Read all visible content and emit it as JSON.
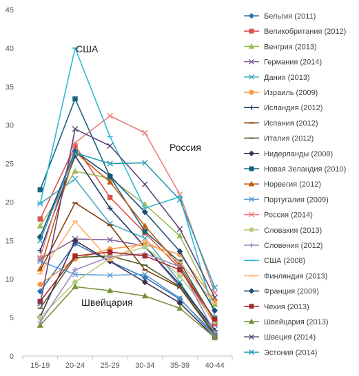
{
  "chart_data": {
    "type": "line",
    "categories": [
      "15-19",
      "20-24",
      "25-29",
      "30-34",
      "35-39",
      "40-44"
    ],
    "ylim": [
      0,
      45
    ],
    "yticks": [
      0,
      5,
      10,
      15,
      20,
      25,
      30,
      35,
      40,
      45
    ],
    "grid": "none",
    "legend_position": "right",
    "annotations": [
      "США",
      "Россия",
      "Швейцария"
    ],
    "series": [
      {
        "name": "Бельгия (2011)",
        "color": "#2e75b6",
        "marker": "diamond",
        "values": [
          8.4,
          14.6,
          12.3,
          10.2,
          7.4,
          2.8
        ]
      },
      {
        "name": "Великобритания (2012)",
        "color": "#d9534f",
        "marker": "square",
        "values": [
          17.8,
          27.3,
          20.6,
          16.0,
          11.4,
          4.2
        ]
      },
      {
        "name": "Венгрия (2013)",
        "color": "#9bbb59",
        "marker": "triangle",
        "values": [
          16.9,
          24.0,
          23.1,
          19.7,
          15.6,
          6.7
        ]
      },
      {
        "name": "Германия (2014)",
        "color": "#8064a2",
        "marker": "x",
        "values": [
          12.6,
          15.2,
          15.1,
          14.3,
          9.0,
          3.5
        ]
      },
      {
        "name": "Дания (2013)",
        "color": "#4bacc6",
        "marker": "x",
        "values": [
          19.8,
          23.0,
          17.2,
          15.3,
          9.6,
          2.9
        ]
      },
      {
        "name": "Израиль (2009)",
        "color": "#f79646",
        "marker": "circle",
        "values": [
          9.3,
          12.6,
          13.9,
          14.5,
          13.2,
          7.2
        ]
      },
      {
        "name": "Исландия (2012)",
        "color": "#1f3864",
        "marker": "plus",
        "values": [
          13.7,
          26.0,
          19.2,
          14.2,
          9.3,
          3.3
        ]
      },
      {
        "name": "Испания (2012)",
        "color": "#843c0c",
        "marker": "dash",
        "values": [
          11.1,
          19.9,
          17.0,
          11.2,
          8.9,
          2.7
        ]
      },
      {
        "name": "Италия (2012)",
        "color": "#4f6228",
        "marker": "dash",
        "values": [
          6.2,
          12.8,
          13.0,
          11.8,
          9.0,
          2.9
        ]
      },
      {
        "name": "Нидерланды (2008)",
        "color": "#403152",
        "marker": "diamond",
        "values": [
          5.1,
          15.0,
          12.3,
          9.6,
          6.9,
          2.4
        ]
      },
      {
        "name": "Новая Зеландия (2010)",
        "color": "#17667a",
        "marker": "square",
        "values": [
          21.6,
          33.4,
          23.3,
          16.2,
          12.2,
          4.5
        ]
      },
      {
        "name": "Норвегия (2012)",
        "color": "#c55a11",
        "marker": "triangle",
        "values": [
          11.3,
          26.5,
          22.6,
          16.9,
          11.7,
          4.6
        ]
      },
      {
        "name": "Португалия (2009)",
        "color": "#5b9bd5",
        "marker": "x",
        "values": [
          12.3,
          10.6,
          10.5,
          10.6,
          7.5,
          2.5
        ]
      },
      {
        "name": "Россия (2014)",
        "color": "#ed7d7d",
        "marker": "x",
        "values": [
          12.8,
          27.7,
          31.2,
          29.0,
          21.0,
          8.2
        ]
      },
      {
        "name": "Словакия (2013)",
        "color": "#b8cc84",
        "marker": "circle",
        "values": [
          5.0,
          9.6,
          12.7,
          14.2,
          10.4,
          4.5
        ]
      },
      {
        "name": "Словения (2012)",
        "color": "#9b89bc",
        "marker": "plus",
        "values": [
          4.4,
          11.2,
          12.9,
          13.3,
          11.6,
          3.0
        ]
      },
      {
        "name": "США (2008)",
        "color": "#31b8d3",
        "marker": "dash",
        "values": [
          19.8,
          40.0,
          28.5,
          19.2,
          20.7,
          5.2
        ]
      },
      {
        "name": "Финляндия  (2013)",
        "color": "#ffb066",
        "marker": "dash",
        "values": [
          10.7,
          17.5,
          12.4,
          15.0,
          12.2,
          6.8
        ]
      },
      {
        "name": "Франция (2009)",
        "color": "#1f4e79",
        "marker": "diamond",
        "values": [
          15.5,
          26.6,
          23.4,
          18.7,
          13.6,
          5.9
        ]
      },
      {
        "name": "Чехия (2013)",
        "color": "#a52a2a",
        "marker": "square",
        "values": [
          7.1,
          13.0,
          13.5,
          13.0,
          11.2,
          4.8
        ]
      },
      {
        "name": "Швейцария (2013)",
        "color": "#76923c",
        "marker": "triangle",
        "values": [
          4.0,
          9.0,
          8.5,
          7.8,
          6.2,
          2.4
        ]
      },
      {
        "name": "Швеция (2014)",
        "color": "#5f497a",
        "marker": "x",
        "values": [
          6.8,
          29.5,
          27.3,
          22.3,
          16.5,
          7.6
        ]
      },
      {
        "name": "Эстония (2014)",
        "color": "#2a9bb5",
        "marker": "x",
        "values": [
          15.0,
          26.4,
          25.0,
          25.1,
          20.3,
          8.9
        ]
      }
    ]
  }
}
